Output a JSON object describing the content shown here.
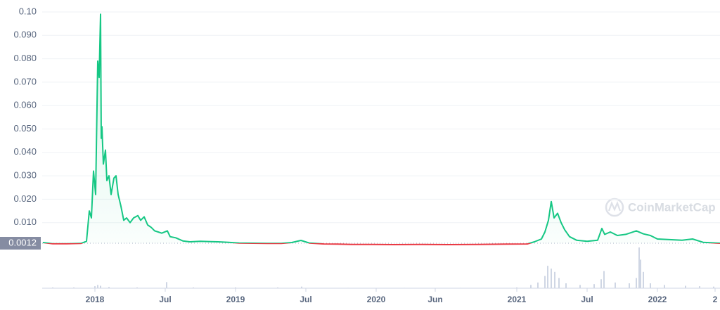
{
  "chart_data": {
    "type": "line",
    "x": [
      2017.63,
      2017.7,
      2017.8,
      2017.9,
      2017.94,
      2017.96,
      2017.975,
      2017.99,
      2018.005,
      2018.02,
      2018.03,
      2018.04,
      2018.045,
      2018.05,
      2018.06,
      2018.075,
      2018.085,
      2018.1,
      2018.115,
      2018.135,
      2018.15,
      2018.165,
      2018.185,
      2018.205,
      2018.225,
      2018.25,
      2018.275,
      2018.305,
      2018.325,
      2018.35,
      2018.375,
      2018.4,
      2018.425,
      2018.45,
      2018.475,
      2018.515,
      2018.535,
      2018.575,
      2018.625,
      2018.675,
      2018.75,
      2018.825,
      2018.875,
      2018.95,
      2019.025,
      2019.125,
      2019.225,
      2019.325,
      2019.4,
      2019.465,
      2019.525,
      2019.625,
      2019.725,
      2019.825,
      2019.975,
      2020.125,
      2020.325,
      2020.525,
      2020.725,
      2020.925,
      2021.075,
      2021.125,
      2021.175,
      2021.2,
      2021.225,
      2021.245,
      2021.265,
      2021.29,
      2021.315,
      2021.34,
      2021.375,
      2021.425,
      2021.5,
      2021.575,
      2021.605,
      2021.625,
      2021.665,
      2021.715,
      2021.775,
      2021.85,
      2021.9,
      2021.95,
      2022.0,
      2022.075,
      2022.175,
      2022.25,
      2022.325,
      2022.445
    ],
    "values": [
      0.0015,
      0.001,
      0.001,
      0.0011,
      0.002,
      0.015,
      0.012,
      0.032,
      0.022,
      0.079,
      0.072,
      0.099,
      0.046,
      0.051,
      0.035,
      0.041,
      0.028,
      0.03,
      0.022,
      0.029,
      0.03,
      0.022,
      0.017,
      0.011,
      0.012,
      0.01,
      0.012,
      0.013,
      0.011,
      0.0125,
      0.009,
      0.008,
      0.0065,
      0.006,
      0.0055,
      0.0065,
      0.004,
      0.0035,
      0.0022,
      0.0018,
      0.002,
      0.0019,
      0.0018,
      0.0016,
      0.0013,
      0.0012,
      0.0011,
      0.0011,
      0.0015,
      0.0024,
      0.0013,
      0.0009,
      0.0008,
      0.0007,
      0.0007,
      0.0006,
      0.0007,
      0.0006,
      0.0007,
      0.0008,
      0.0009,
      0.0018,
      0.003,
      0.006,
      0.011,
      0.019,
      0.012,
      0.014,
      0.01,
      0.007,
      0.004,
      0.0025,
      0.002,
      0.0025,
      0.0075,
      0.005,
      0.006,
      0.0045,
      0.005,
      0.0065,
      0.0052,
      0.0045,
      0.003,
      0.0028,
      0.0025,
      0.003,
      0.0016,
      0.0012
    ],
    "color": "#16c784",
    "down_color": "#ea3943",
    "baseline": 0.0012,
    "xlim": [
      2017.625,
      2022.445
    ],
    "ylim": [
      0,
      0.1
    ],
    "yticks": [
      {
        "value": 0.1,
        "label": "0.10"
      },
      {
        "value": 0.09,
        "label": "0.090"
      },
      {
        "value": 0.08,
        "label": "0.080"
      },
      {
        "value": 0.07,
        "label": "0.070"
      },
      {
        "value": 0.06,
        "label": "0.060"
      },
      {
        "value": 0.05,
        "label": "0.050"
      },
      {
        "value": 0.04,
        "label": "0.040"
      },
      {
        "value": 0.03,
        "label": "0.030"
      },
      {
        "value": 0.02,
        "label": "0.020"
      },
      {
        "value": 0.01,
        "label": "0.010"
      }
    ],
    "xticks": [
      2018,
      {
        "value": 2018.5,
        "label": "Jul"
      },
      2019,
      {
        "value": 2019.5,
        "label": "Jul"
      },
      2020,
      {
        "value": 2020.42,
        "label": "Jun"
      },
      2021,
      {
        "value": 2021.5,
        "label": "Jul"
      },
      2022,
      {
        "value": 2022.41,
        "label": "2"
      }
    ],
    "grid": true,
    "volume": {
      "x": [
        2017.7,
        2017.85,
        2018.0,
        2018.02,
        2018.04,
        2018.1,
        2018.3,
        2018.51,
        2018.7,
        2019.0,
        2019.3,
        2019.47,
        2019.8,
        2020.2,
        2020.6,
        2021.0,
        2021.1,
        2021.15,
        2021.2,
        2021.22,
        2021.245,
        2021.27,
        2021.3,
        2021.35,
        2021.45,
        2021.55,
        2021.6,
        2021.62,
        2021.7,
        2021.8,
        2021.85,
        2021.87,
        2021.88,
        2021.9,
        2021.95,
        2022.05,
        2022.2,
        2022.3,
        2022.4
      ],
      "values": [
        2,
        2,
        5,
        8,
        6,
        3,
        2,
        15,
        2,
        2,
        2,
        4,
        1,
        1,
        1,
        2,
        8,
        14,
        30,
        55,
        48,
        40,
        25,
        12,
        8,
        10,
        22,
        42,
        14,
        12,
        25,
        100,
        70,
        40,
        12,
        8,
        6,
        5,
        4
      ],
      "color": "#cfd6e4"
    },
    "vlim": [
      0,
      100
    ],
    "watermark": "CoinMarketCap"
  }
}
